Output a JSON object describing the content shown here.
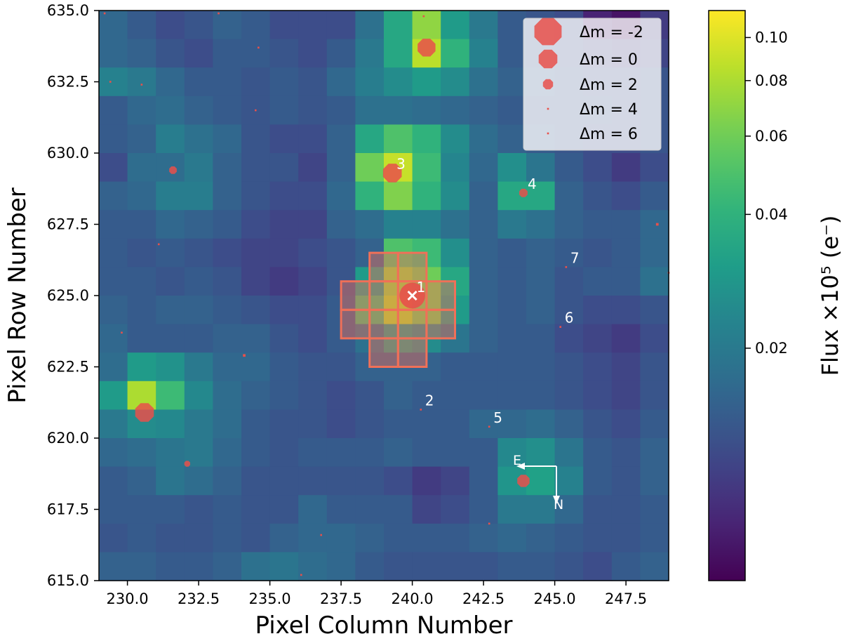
{
  "chart_data": {
    "type": "heatmap",
    "title": "",
    "xlabel": "Pixel Column Number",
    "ylabel": "Pixel Row Number",
    "xlim": [
      229,
      249
    ],
    "ylim": [
      615,
      635
    ],
    "xticks": [
      {
        "value": 230.0,
        "label": "230.0"
      },
      {
        "value": 232.5,
        "label": "232.5"
      },
      {
        "value": 235.0,
        "label": "235.0"
      },
      {
        "value": 237.5,
        "label": "237.5"
      },
      {
        "value": 240.0,
        "label": "240.0"
      },
      {
        "value": 242.5,
        "label": "242.5"
      },
      {
        "value": 245.0,
        "label": "245.0"
      },
      {
        "value": 247.5,
        "label": "247.5"
      }
    ],
    "yticks": [
      {
        "value": 615.0,
        "label": "615.0"
      },
      {
        "value": 617.5,
        "label": "617.5"
      },
      {
        "value": 620.0,
        "label": "620.0"
      },
      {
        "value": 622.5,
        "label": "622.5"
      },
      {
        "value": 625.0,
        "label": "625.0"
      },
      {
        "value": 627.5,
        "label": "627.5"
      },
      {
        "value": 630.0,
        "label": "630.0"
      },
      {
        "value": 632.5,
        "label": "632.5"
      },
      {
        "value": 635.0,
        "label": "635.0"
      }
    ],
    "flux_grid_note": "rows listed from top (row 634) to bottom (row 615); columns 229..248; values in units of 1e5 e-",
    "flux_grid": [
      [
        0.016,
        0.014,
        0.012,
        0.013,
        0.015,
        0.014,
        0.012,
        0.012,
        0.012,
        0.018,
        0.035,
        0.07,
        0.03,
        0.02,
        0.014,
        0.013,
        0.012,
        0.008,
        0.007,
        0.01
      ],
      [
        0.016,
        0.015,
        0.013,
        0.012,
        0.014,
        0.014,
        0.013,
        0.012,
        0.014,
        0.02,
        0.035,
        0.085,
        0.04,
        0.022,
        0.014,
        0.013,
        0.012,
        0.011,
        0.01,
        0.011
      ],
      [
        0.022,
        0.02,
        0.016,
        0.014,
        0.014,
        0.013,
        0.014,
        0.013,
        0.016,
        0.021,
        0.025,
        0.03,
        0.025,
        0.018,
        0.015,
        0.014,
        0.013,
        0.012,
        0.012,
        0.013
      ],
      [
        0.014,
        0.016,
        0.017,
        0.015,
        0.014,
        0.013,
        0.014,
        0.013,
        0.014,
        0.018,
        0.018,
        0.017,
        0.016,
        0.015,
        0.014,
        0.013,
        0.013,
        0.013,
        0.012,
        0.013
      ],
      [
        0.014,
        0.015,
        0.021,
        0.018,
        0.016,
        0.013,
        0.012,
        0.012,
        0.015,
        0.035,
        0.05,
        0.04,
        0.025,
        0.017,
        0.015,
        0.014,
        0.013,
        0.012,
        0.012,
        0.013
      ],
      [
        0.012,
        0.017,
        0.017,
        0.02,
        0.015,
        0.013,
        0.013,
        0.011,
        0.015,
        0.06,
        0.09,
        0.045,
        0.023,
        0.016,
        0.026,
        0.019,
        0.014,
        0.012,
        0.01,
        0.012
      ],
      [
        0.015,
        0.016,
        0.021,
        0.021,
        0.015,
        0.013,
        0.012,
        0.012,
        0.016,
        0.04,
        0.065,
        0.04,
        0.025,
        0.015,
        0.035,
        0.035,
        0.015,
        0.013,
        0.012,
        0.014
      ],
      [
        0.014,
        0.014,
        0.016,
        0.015,
        0.014,
        0.012,
        0.011,
        0.011,
        0.015,
        0.017,
        0.022,
        0.022,
        0.018,
        0.015,
        0.02,
        0.018,
        0.015,
        0.014,
        0.014,
        0.016
      ],
      [
        0.014,
        0.013,
        0.014,
        0.013,
        0.012,
        0.011,
        0.011,
        0.012,
        0.013,
        0.015,
        0.05,
        0.045,
        0.026,
        0.015,
        0.014,
        0.015,
        0.014,
        0.013,
        0.014,
        0.016
      ],
      [
        0.014,
        0.014,
        0.013,
        0.014,
        0.013,
        0.011,
        0.01,
        0.011,
        0.013,
        0.03,
        0.07,
        0.06,
        0.035,
        0.015,
        0.014,
        0.015,
        0.013,
        0.014,
        0.014,
        0.018
      ],
      [
        0.015,
        0.014,
        0.015,
        0.015,
        0.014,
        0.013,
        0.012,
        0.012,
        0.014,
        0.045,
        0.08,
        0.06,
        0.03,
        0.015,
        0.014,
        0.015,
        0.013,
        0.012,
        0.012,
        0.013
      ],
      [
        0.016,
        0.014,
        0.014,
        0.014,
        0.015,
        0.015,
        0.013,
        0.012,
        0.014,
        0.018,
        0.03,
        0.025,
        0.019,
        0.015,
        0.014,
        0.014,
        0.012,
        0.011,
        0.01,
        0.012
      ],
      [
        0.017,
        0.03,
        0.027,
        0.02,
        0.016,
        0.016,
        0.014,
        0.013,
        0.013,
        0.015,
        0.015,
        0.015,
        0.014,
        0.014,
        0.014,
        0.014,
        0.013,
        0.012,
        0.011,
        0.013
      ],
      [
        0.03,
        0.08,
        0.045,
        0.024,
        0.017,
        0.015,
        0.014,
        0.013,
        0.012,
        0.013,
        0.015,
        0.014,
        0.014,
        0.014,
        0.014,
        0.014,
        0.013,
        0.012,
        0.011,
        0.013
      ],
      [
        0.02,
        0.025,
        0.024,
        0.02,
        0.017,
        0.014,
        0.013,
        0.013,
        0.012,
        0.013,
        0.014,
        0.014,
        0.014,
        0.016,
        0.016,
        0.017,
        0.015,
        0.013,
        0.012,
        0.014
      ],
      [
        0.016,
        0.017,
        0.019,
        0.02,
        0.016,
        0.014,
        0.013,
        0.014,
        0.014,
        0.014,
        0.015,
        0.014,
        0.014,
        0.014,
        0.024,
        0.026,
        0.019,
        0.014,
        0.013,
        0.015
      ],
      [
        0.014,
        0.015,
        0.019,
        0.017,
        0.015,
        0.013,
        0.013,
        0.013,
        0.013,
        0.013,
        0.012,
        0.01,
        0.011,
        0.014,
        0.028,
        0.032,
        0.022,
        0.014,
        0.013,
        0.015
      ],
      [
        0.014,
        0.014,
        0.014,
        0.013,
        0.014,
        0.013,
        0.013,
        0.016,
        0.014,
        0.014,
        0.014,
        0.011,
        0.012,
        0.014,
        0.02,
        0.02,
        0.016,
        0.013,
        0.013,
        0.014
      ],
      [
        0.013,
        0.014,
        0.013,
        0.013,
        0.014,
        0.013,
        0.015,
        0.016,
        0.016,
        0.015,
        0.014,
        0.014,
        0.014,
        0.015,
        0.016,
        0.015,
        0.014,
        0.013,
        0.013,
        0.014
      ],
      [
        0.015,
        0.015,
        0.014,
        0.014,
        0.015,
        0.018,
        0.019,
        0.017,
        0.016,
        0.014,
        0.013,
        0.013,
        0.013,
        0.013,
        0.014,
        0.014,
        0.013,
        0.012,
        0.014,
        0.015
      ]
    ],
    "aperture_pixels": [
      [
        239,
        626
      ],
      [
        240,
        626
      ],
      [
        238,
        625
      ],
      [
        239,
        625
      ],
      [
        240,
        625
      ],
      [
        241,
        625
      ],
      [
        238,
        624
      ],
      [
        239,
        624
      ],
      [
        240,
        624
      ],
      [
        241,
        624
      ],
      [
        239,
        623
      ],
      [
        240,
        623
      ]
    ],
    "target": {
      "x": 240.0,
      "y": 625.0,
      "label": "1",
      "dm": -1.2
    },
    "stars": [
      {
        "x": 240.3,
        "y": 621.0,
        "dm": 4.5,
        "label": "2"
      },
      {
        "x": 239.3,
        "y": 629.3,
        "dm": 0.0,
        "label": "3"
      },
      {
        "x": 243.9,
        "y": 628.6,
        "dm": 2.4,
        "label": "4"
      },
      {
        "x": 242.7,
        "y": 620.4,
        "dm": 4.7,
        "label": "5"
      },
      {
        "x": 245.2,
        "y": 623.9,
        "dm": 5.0,
        "label": "6"
      },
      {
        "x": 245.4,
        "y": 626.0,
        "dm": 5.0,
        "label": "7"
      },
      {
        "x": 240.5,
        "y": 633.7,
        "dm": 0.2,
        "label": ""
      },
      {
        "x": 240.4,
        "y": 634.8,
        "dm": 4.4,
        "label": ""
      },
      {
        "x": 230.6,
        "y": 620.9,
        "dm": 0.0,
        "label": ""
      },
      {
        "x": 243.9,
        "y": 618.5,
        "dm": 1.5,
        "label": ""
      },
      {
        "x": 231.6,
        "y": 629.4,
        "dm": 2.6,
        "label": ""
      },
      {
        "x": 232.1,
        "y": 619.1,
        "dm": 3.0,
        "label": ""
      },
      {
        "x": 248.6,
        "y": 627.5,
        "dm": 3.8,
        "label": ""
      },
      {
        "x": 234.1,
        "y": 622.9,
        "dm": 3.8,
        "label": ""
      },
      {
        "x": 242.7,
        "y": 617.0,
        "dm": 4.6,
        "label": ""
      },
      {
        "x": 236.1,
        "y": 615.2,
        "dm": 4.3,
        "label": ""
      },
      {
        "x": 229.4,
        "y": 632.5,
        "dm": 5.2,
        "label": ""
      },
      {
        "x": 234.5,
        "y": 631.5,
        "dm": 5.3,
        "label": ""
      },
      {
        "x": 230.5,
        "y": 632.4,
        "dm": 5.6,
        "label": ""
      },
      {
        "x": 234.6,
        "y": 633.7,
        "dm": 5.6,
        "label": ""
      },
      {
        "x": 229.8,
        "y": 623.7,
        "dm": 5.8,
        "label": ""
      },
      {
        "x": 231.1,
        "y": 626.8,
        "dm": 5.8,
        "label": ""
      },
      {
        "x": 236.8,
        "y": 616.6,
        "dm": 5.9,
        "label": ""
      },
      {
        "x": 233.2,
        "y": 634.9,
        "dm": 5.5,
        "label": ""
      },
      {
        "x": 229.2,
        "y": 634.9,
        "dm": 5.7,
        "label": ""
      },
      {
        "x": 249.0,
        "y": 625.8,
        "dm": 4.8,
        "label": ""
      }
    ],
    "legend": {
      "position": "top-right",
      "entries": [
        {
          "label": "Δm =  -2",
          "dm": -2
        },
        {
          "label": "Δm =  0",
          "dm": 0
        },
        {
          "label": "Δm =  2",
          "dm": 2
        },
        {
          "label": "Δm =  4",
          "dm": 4
        },
        {
          "label": "Δm =  6",
          "dm": 6
        }
      ]
    },
    "compass": {
      "east_label": "E",
      "north_label": "N"
    },
    "colorbar": {
      "label": "Flux ×10⁵ (e⁻)",
      "scale": "log",
      "range": [
        0.006,
        0.115
      ],
      "ticks": [
        {
          "value": 0.1,
          "label": "0.10"
        },
        {
          "value": 0.08,
          "label": "0.08"
        },
        {
          "value": 0.06,
          "label": "0.06"
        },
        {
          "value": 0.04,
          "label": "0.04"
        },
        {
          "value": 0.02,
          "label": "0.02"
        }
      ]
    },
    "colors": {
      "marker": "#e8504b",
      "aperture": "#f07058",
      "annotation": "#ffffff",
      "axis": "#000000"
    }
  }
}
